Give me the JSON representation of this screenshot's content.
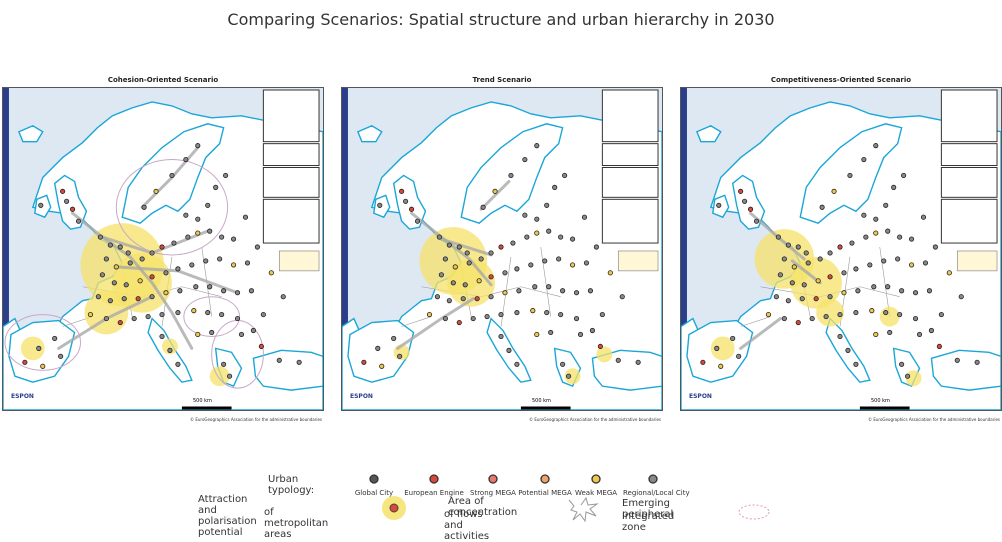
{
  "title": "Comparing Scenarios: Spatial structure and urban hierarchy in 2030",
  "maps": [
    {
      "title": "Cohesion-Oriented Scenario",
      "scale": "500 km",
      "credit": "© EuroGeographics Association for the administrative boundaries",
      "logo": "ESPON"
    },
    {
      "title": "Trend Scenario",
      "scale": "500 km",
      "credit": "© EuroGeographics Association for the administrative boundaries",
      "logo": "ESPON"
    },
    {
      "title": "Competitiveness-Oriented Scenario",
      "scale": "500 km",
      "credit": "© EuroGeographics Association for the administrative boundaries",
      "logo": "ESPON"
    }
  ],
  "legend": {
    "typology_label": "Urban typology:",
    "types": [
      {
        "label": "Global City",
        "color": "#555555"
      },
      {
        "label": "European Engine",
        "color": "#d9483b"
      },
      {
        "label": "Strong MEGA",
        "color": "#e8796b"
      },
      {
        "label": "Potential MEGA",
        "color": "#f0a36a"
      },
      {
        "label": "Weak MEGA",
        "color": "#f2c84b"
      },
      {
        "label": "Regional/Local City",
        "color": "#888888"
      }
    ],
    "attraction_label_1": "Attraction and polarisation potential",
    "attraction_label_2": "of metropolitan areas",
    "flows_label_1": "Area of concentration",
    "flows_label_2": "of flows and activities",
    "peripheral_label_1": "Emerging peripheral",
    "peripheral_label_2": "integrated zone"
  },
  "colors": {
    "sea": "#dde8f3",
    "land": "#ffffff",
    "coast": "#1aa6d8",
    "border": "#999999",
    "concentration": "#f5e26a",
    "flows": "#a9a9a9"
  }
}
